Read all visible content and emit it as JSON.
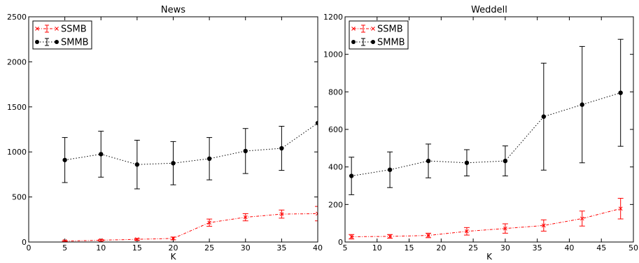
{
  "chart_data": [
    {
      "type": "line",
      "title": "News",
      "xlabel": "K",
      "ylabel": "",
      "xlim": [
        0,
        40
      ],
      "ylim": [
        0,
        2500
      ],
      "xticks": [
        0,
        5,
        10,
        15,
        20,
        25,
        30,
        35,
        40
      ],
      "yticks": [
        0,
        500,
        1000,
        1500,
        2000,
        2500
      ],
      "grid": false,
      "legend_position": "top-left",
      "x": [
        5,
        10,
        15,
        20,
        25,
        30,
        35,
        40
      ],
      "series": [
        {
          "name": "SSMB",
          "color": "#ff0000",
          "marker": "x",
          "linestyle": "dash-dot",
          "values": [
            10,
            20,
            30,
            40,
            215,
            275,
            310,
            315
          ],
          "err_low": [
            5,
            8,
            10,
            15,
            40,
            40,
            45,
            80
          ],
          "err_high": [
            5,
            8,
            10,
            15,
            40,
            40,
            45,
            80
          ]
        },
        {
          "name": "SMMB",
          "color": "#000000",
          "marker": "circle",
          "linestyle": "dotted",
          "values": [
            910,
            975,
            860,
            875,
            925,
            1010,
            1040,
            1320
          ],
          "err_low": [
            250,
            255,
            270,
            240,
            235,
            250,
            245,
            0
          ],
          "err_high": [
            250,
            255,
            270,
            240,
            235,
            250,
            245,
            0
          ]
        }
      ]
    },
    {
      "type": "line",
      "title": "Weddell",
      "xlabel": "K",
      "ylabel": "",
      "xlim": [
        5,
        50
      ],
      "ylim": [
        0,
        1200
      ],
      "xticks": [
        5,
        10,
        15,
        20,
        25,
        30,
        35,
        40,
        45,
        50
      ],
      "yticks": [
        0,
        200,
        400,
        600,
        800,
        1000,
        1200
      ],
      "grid": false,
      "legend_position": "top-left",
      "x": [
        6,
        12,
        18,
        24,
        30,
        36,
        42,
        48
      ],
      "series": [
        {
          "name": "SSMB",
          "color": "#ff0000",
          "marker": "x",
          "linestyle": "dash-dot",
          "values": [
            28,
            30,
            35,
            57,
            72,
            88,
            125,
            178
          ],
          "err_low": [
            12,
            10,
            12,
            20,
            25,
            30,
            40,
            55
          ],
          "err_high": [
            12,
            10,
            12,
            20,
            25,
            30,
            40,
            55
          ]
        },
        {
          "name": "SMMB",
          "color": "#000000",
          "marker": "circle",
          "linestyle": "dotted",
          "values": [
            352,
            385,
            432,
            422,
            432,
            668,
            732,
            795
          ],
          "err_low": [
            100,
            95,
            90,
            70,
            80,
            285,
            310,
            285
          ],
          "err_high": [
            100,
            95,
            90,
            70,
            80,
            285,
            310,
            285
          ]
        }
      ]
    }
  ]
}
